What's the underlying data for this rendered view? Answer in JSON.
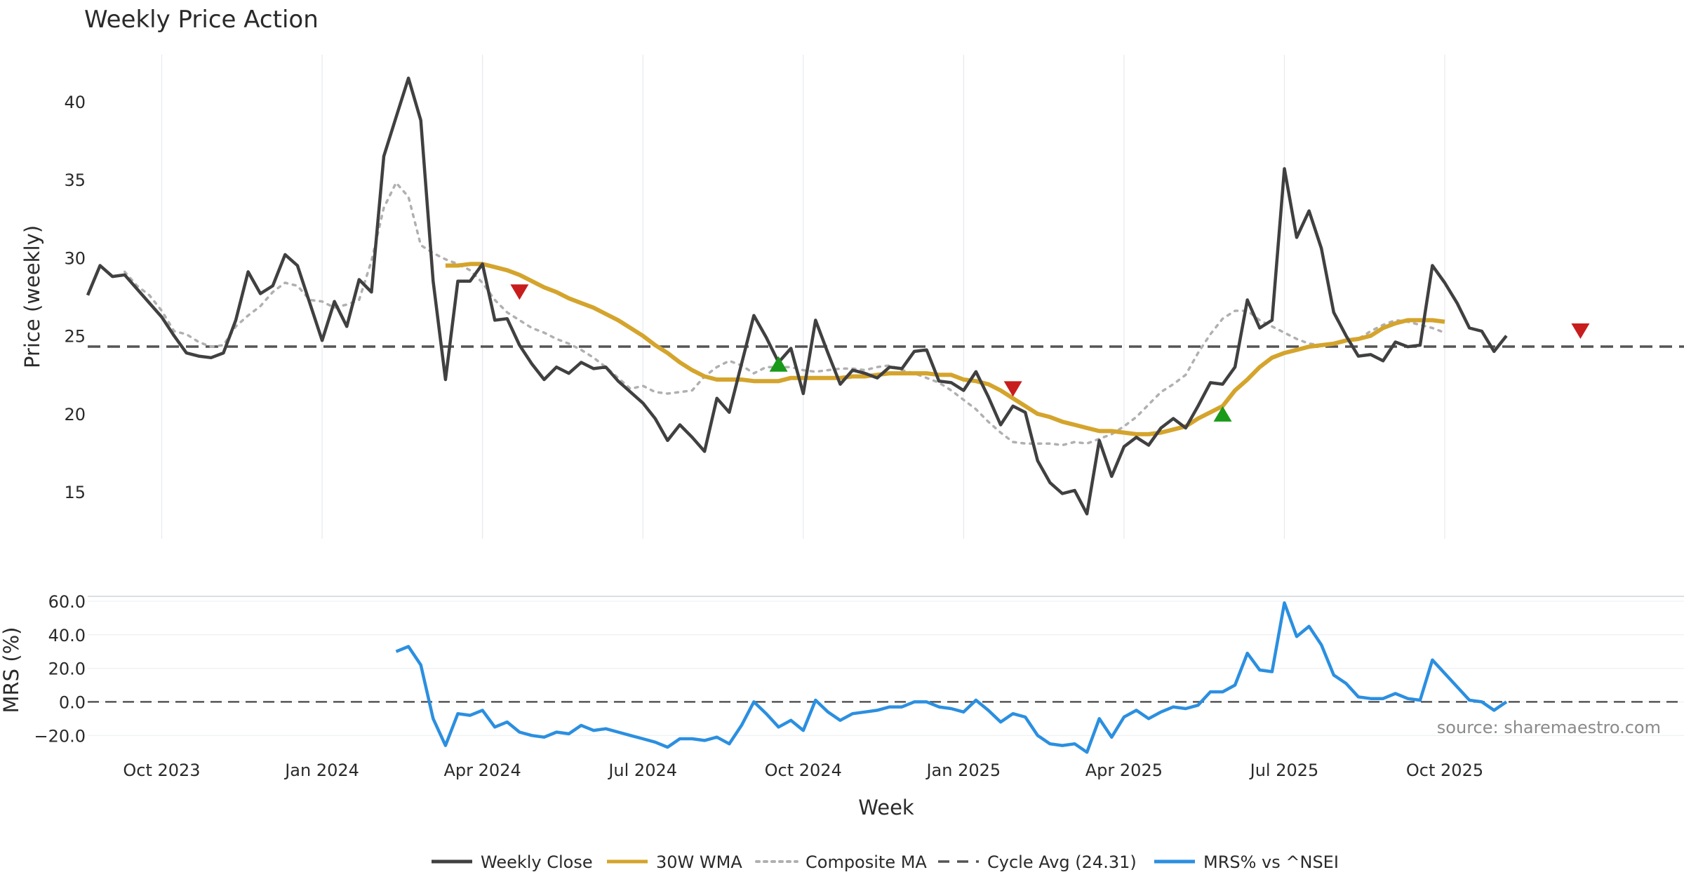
{
  "chart_data": {
    "type": "line",
    "title": "Weekly Price Action",
    "xlabel": "Week",
    "x_ticks": [
      "Oct 2023",
      "Jan 2024",
      "Apr 2024",
      "Jul 2024",
      "Oct 2024",
      "Jan 2025",
      "Apr 2025",
      "Jul 2025",
      "Oct 2025"
    ],
    "x_tick_week_index": [
      6,
      19,
      32,
      45,
      58,
      71,
      84,
      97,
      110
    ],
    "x_range_weeks": [
      0,
      122
    ],
    "price_panel": {
      "ylabel": "Price (weekly)",
      "ylim": [
        12,
        43
      ],
      "y_ticks": [
        15,
        20,
        25,
        30,
        35,
        40
      ],
      "cycle_avg": 24.31,
      "series": [
        {
          "name": "Weekly Close",
          "color": "#404040",
          "start_week": 0,
          "values": [
            27.6,
            29.5,
            28.8,
            28.9,
            28.0,
            27.1,
            26.2,
            25.0,
            23.9,
            23.7,
            23.6,
            23.9,
            26.0,
            29.1,
            27.7,
            28.2,
            30.2,
            29.5,
            27.1,
            24.7,
            27.2,
            25.6,
            28.6,
            27.8,
            36.5,
            39.0,
            41.5,
            38.8,
            28.5,
            22.2,
            28.5,
            28.5,
            29.6,
            26.0,
            26.1,
            24.4,
            23.2,
            22.2,
            23.0,
            22.6,
            23.3,
            22.9,
            23.0,
            22.1,
            21.4,
            20.7,
            19.7,
            18.3,
            19.3,
            18.5,
            17.6,
            21.0,
            20.1,
            23.2,
            26.3,
            24.9,
            23.3,
            24.2,
            21.3,
            26.0,
            23.9,
            21.9,
            22.8,
            22.6,
            22.3,
            23.0,
            22.9,
            24.0,
            24.1,
            22.1,
            22.0,
            21.5,
            22.7,
            21.1,
            19.3,
            20.5,
            20.1,
            17.0,
            15.6,
            14.9,
            15.1,
            13.6,
            18.3,
            16.0,
            17.9,
            18.5,
            18.0,
            19.1,
            19.7,
            19.1,
            20.5,
            22.0,
            21.9,
            23.0,
            27.3,
            25.5,
            26.0,
            35.7,
            31.3,
            33.0,
            30.6,
            26.5,
            25.0,
            23.7,
            23.8,
            23.4,
            24.6,
            24.3,
            24.4,
            29.5,
            28.4,
            27.1,
            25.5,
            25.3,
            24.0,
            25.0
          ]
        },
        {
          "name": "30W WMA",
          "color": "#d4a42c",
          "start_week": 29,
          "values": [
            29.5,
            29.5,
            29.6,
            29.6,
            29.4,
            29.2,
            28.9,
            28.5,
            28.1,
            27.8,
            27.4,
            27.1,
            26.8,
            26.4,
            26.0,
            25.5,
            25.0,
            24.4,
            23.9,
            23.3,
            22.8,
            22.4,
            22.2,
            22.2,
            22.2,
            22.1,
            22.1,
            22.1,
            22.3,
            22.3,
            22.3,
            22.3,
            22.3,
            22.4,
            22.4,
            22.5,
            22.6,
            22.6,
            22.6,
            22.6,
            22.5,
            22.5,
            22.2,
            22.1,
            21.9,
            21.5,
            21.0,
            20.5,
            20.0,
            19.8,
            19.5,
            19.3,
            19.1,
            18.9,
            18.9,
            18.8,
            18.7,
            18.7,
            18.8,
            19.0,
            19.2,
            19.7,
            20.1,
            20.5,
            21.5,
            22.2,
            23.0,
            23.6,
            23.9,
            24.1,
            24.3,
            24.4,
            24.5,
            24.7,
            24.8,
            25.0,
            25.5,
            25.8,
            26.0,
            26.0,
            26.0,
            25.9
          ]
        },
        {
          "name": "Composite MA",
          "color": "#b0b0b0",
          "start_week": 3,
          "values": [
            29.1,
            28.2,
            27.6,
            26.6,
            25.3,
            25.1,
            24.6,
            24.3,
            24.4,
            25.6,
            26.3,
            26.9,
            27.8,
            28.4,
            28.2,
            27.3,
            27.2,
            26.8,
            27.0,
            27.3,
            29.8,
            33.2,
            34.8,
            33.9,
            30.8,
            30.3,
            29.9,
            29.6,
            29.2,
            28.4,
            27.3,
            26.5,
            26.0,
            25.5,
            25.2,
            24.8,
            24.5,
            24.1,
            23.6,
            23.0,
            22.3,
            21.6,
            21.8,
            21.4,
            21.3,
            21.4,
            21.5,
            22.4,
            23.0,
            23.4,
            23.1,
            22.6,
            23.0,
            23.0,
            23.0,
            22.8,
            22.7,
            22.8,
            22.9,
            22.9,
            22.8,
            23.0,
            23.1,
            22.8,
            22.6,
            22.3,
            22.0,
            21.5,
            20.9,
            20.3,
            19.5,
            18.8,
            18.2,
            18.1,
            18.1,
            18.1,
            18.0,
            18.2,
            18.1,
            18.4,
            18.7,
            19.2,
            19.8,
            20.6,
            21.4,
            21.9,
            22.5,
            23.9,
            25.1,
            26.1,
            26.6,
            26.6,
            26.0,
            25.6,
            25.2,
            24.8,
            24.5,
            24.4,
            24.5,
            24.7,
            24.8,
            25.3,
            25.7,
            26.0,
            25.9,
            25.7,
            25.5,
            25.2
          ]
        }
      ],
      "signals": [
        {
          "type": "sell",
          "week": 35,
          "value": 27.8,
          "color": "#c81d1d"
        },
        {
          "type": "buy",
          "week": 56,
          "value": 23.2,
          "color": "#1a9a1a"
        },
        {
          "type": "sell",
          "week": 75,
          "value": 21.6,
          "color": "#c81d1d"
        },
        {
          "type": "buy",
          "week": 92,
          "value": 20.0,
          "color": "#1a9a1a"
        },
        {
          "type": "sell",
          "week": 121,
          "value": 25.3,
          "color": "#c81d1d"
        }
      ]
    },
    "mrs_panel": {
      "ylabel": "MRS (%)",
      "ylim": [
        -27,
        65
      ],
      "y_ticks": [
        "60.0",
        "40.0",
        "20.0",
        "0.0",
        "−20.0"
      ],
      "y_tick_values": [
        60,
        40,
        20,
        0,
        -20
      ],
      "series": {
        "name": "MRS% vs ^NSEI",
        "color": "#2b8fe0",
        "start_week": 25,
        "values": [
          30,
          33,
          22,
          -10,
          -26,
          -7,
          -8,
          -5,
          -15,
          -12,
          -18,
          -20,
          -21,
          -18,
          -19,
          -14,
          -17,
          -16,
          -18,
          -20,
          -22,
          -24,
          -27,
          -22,
          -22,
          -23,
          -21,
          -25,
          -14,
          0,
          -7,
          -15,
          -11,
          -17,
          1,
          -6,
          -11,
          -7,
          -6,
          -5,
          -3,
          -3,
          0,
          0,
          -3,
          -4,
          -6,
          1,
          -5,
          -12,
          -7,
          -9,
          -20,
          -25,
          -26,
          -25,
          -30,
          -10,
          -21,
          -9,
          -5,
          -10,
          -6,
          -3,
          -4,
          -2,
          6,
          6,
          10,
          29,
          19,
          18,
          59,
          39,
          45,
          34,
          16,
          11,
          3,
          2,
          2,
          5,
          2,
          1,
          25,
          17,
          9,
          1,
          0,
          -5,
          0
        ]
      }
    },
    "legend": [
      {
        "label": "Weekly Close",
        "style": "solid",
        "color": "#404040"
      },
      {
        "label": "30W WMA",
        "style": "solid",
        "color": "#d4a42c"
      },
      {
        "label": "Composite MA",
        "style": "dotted",
        "color": "#b0b0b0"
      },
      {
        "label": "Cycle Avg (24.31)",
        "style": "dashed",
        "color": "#555555"
      },
      {
        "label": "MRS% vs ^NSEI",
        "style": "solid",
        "color": "#2b8fe0"
      }
    ],
    "source_note": "source: sharemaestro.com"
  }
}
